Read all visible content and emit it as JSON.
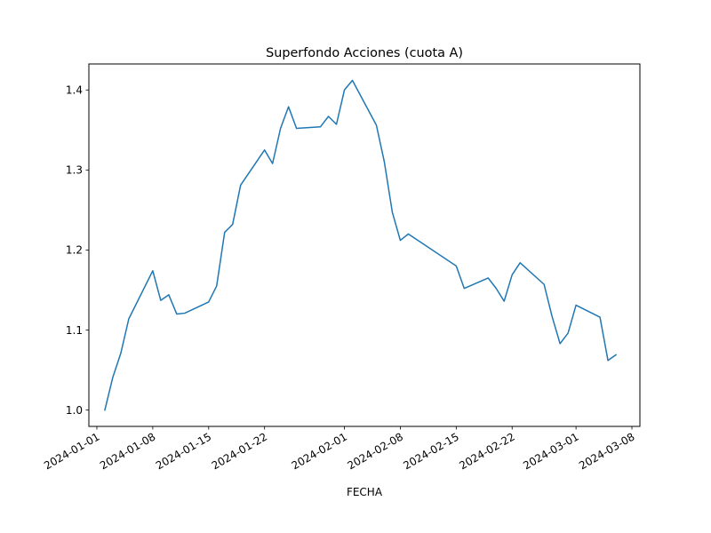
{
  "chart_data": {
    "type": "line",
    "title": "Superfondo Acciones (cuota A)",
    "xlabel": "FECHA",
    "ylabel": "",
    "xlim": [
      "2023-12-31",
      "2024-03-09"
    ],
    "ylim": [
      0.9795,
      1.4325
    ],
    "grid": false,
    "legend": "none",
    "line_color": "#1f77b4",
    "x_ticks": [
      "2024-01-01",
      "2024-01-08",
      "2024-01-15",
      "2024-01-22",
      "2024-02-01",
      "2024-02-08",
      "2024-02-15",
      "2024-02-22",
      "2024-03-01",
      "2024-03-08"
    ],
    "y_ticks": [
      1.0,
      1.1,
      1.2,
      1.3,
      1.4
    ],
    "y_tick_labels": [
      "1.0",
      "1.1",
      "1.2",
      "1.3",
      "1.4"
    ],
    "series": [
      {
        "x": [
          "2024-01-02",
          "2024-01-03",
          "2024-01-04",
          "2024-01-05",
          "2024-01-08",
          "2024-01-09",
          "2024-01-10",
          "2024-01-11",
          "2024-01-12",
          "2024-01-15",
          "2024-01-16",
          "2024-01-17",
          "2024-01-18",
          "2024-01-19",
          "2024-01-22",
          "2024-01-23",
          "2024-01-24",
          "2024-01-25",
          "2024-01-26",
          "2024-01-29",
          "2024-01-30",
          "2024-01-31",
          "2024-02-01",
          "2024-02-02",
          "2024-02-05",
          "2024-02-06",
          "2024-02-07",
          "2024-02-08",
          "2024-02-09",
          "2024-02-15",
          "2024-02-16",
          "2024-02-19",
          "2024-02-20",
          "2024-02-21",
          "2024-02-22",
          "2024-02-23",
          "2024-02-26",
          "2024-02-27",
          "2024-02-28",
          "2024-02-29",
          "2024-03-01",
          "2024-03-04",
          "2024-03-05",
          "2024-03-06"
        ],
        "y": [
          1.0,
          1.041,
          1.071,
          1.114,
          1.174,
          1.137,
          1.144,
          1.12,
          1.121,
          1.135,
          1.155,
          1.222,
          1.232,
          1.281,
          1.325,
          1.308,
          1.352,
          1.379,
          1.352,
          1.354,
          1.367,
          1.357,
          1.4,
          1.412,
          1.356,
          1.31,
          1.247,
          1.212,
          1.22,
          1.18,
          1.152,
          1.165,
          1.152,
          1.136,
          1.169,
          1.184,
          1.157,
          1.117,
          1.083,
          1.096,
          1.131,
          1.116,
          1.062,
          1.069
        ]
      }
    ]
  }
}
